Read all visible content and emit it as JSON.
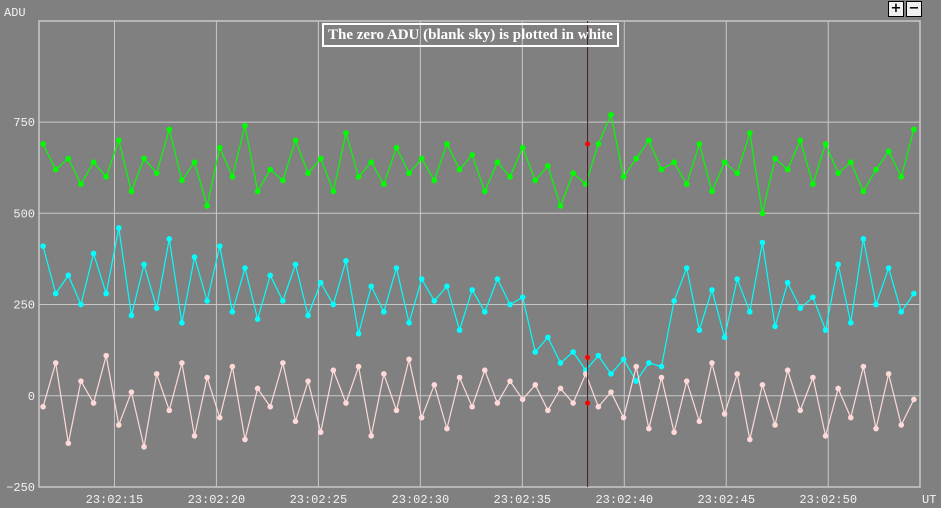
{
  "chart_data": {
    "type": "line",
    "title": "The zero ADU (blank sky) is plotted in white",
    "ylabel": "ADU",
    "xlabel": "UT",
    "ylim": [
      -250,
      1027
    ],
    "xlim_seconds_after_23_02_00": [
      11.3,
      54.5
    ],
    "yticks": [
      {
        "v": 750,
        "label": "750"
      },
      {
        "v": 500,
        "label": "500"
      },
      {
        "v": 250,
        "label": "250"
      },
      {
        "v": 0,
        "label": "0"
      },
      {
        "v": -250,
        "label": "−250"
      }
    ],
    "xticks": [
      {
        "v": 15,
        "label": "23:02:15"
      },
      {
        "v": 20,
        "label": "23:02:20"
      },
      {
        "v": 25,
        "label": "23:02:25"
      },
      {
        "v": 30,
        "label": "23:02:30"
      },
      {
        "v": 35,
        "label": "23:02:35"
      },
      {
        "v": 40,
        "label": "23:02:40"
      },
      {
        "v": 45,
        "label": "23:02:45"
      },
      {
        "v": 50,
        "label": "23:02:50"
      }
    ],
    "grid": true,
    "x_start": 11.5,
    "x_end": 54.2,
    "cursor": {
      "x": 38.2,
      "values": [
        690,
        105,
        -20
      ],
      "color": "#ff0000"
    },
    "series": [
      {
        "name": "green",
        "color": "#00ff00",
        "values": [
          690,
          620,
          650,
          580,
          640,
          600,
          700,
          560,
          650,
          610,
          730,
          590,
          640,
          520,
          680,
          600,
          740,
          560,
          620,
          590,
          700,
          610,
          650,
          560,
          720,
          600,
          640,
          580,
          680,
          610,
          650,
          590,
          690,
          620,
          660,
          560,
          640,
          600,
          680,
          590,
          630,
          520,
          610,
          580,
          690,
          770,
          600,
          650,
          700,
          620,
          640,
          580,
          690,
          560,
          640,
          610,
          720,
          500,
          650,
          620,
          700,
          580,
          690,
          610,
          640,
          560,
          620,
          670,
          600,
          730
        ]
      },
      {
        "name": "cyan",
        "color": "#00ffff",
        "values": [
          410,
          280,
          330,
          250,
          390,
          280,
          460,
          220,
          360,
          240,
          430,
          200,
          380,
          260,
          410,
          230,
          350,
          210,
          330,
          260,
          360,
          220,
          310,
          250,
          370,
          170,
          300,
          230,
          350,
          200,
          320,
          260,
          300,
          180,
          290,
          230,
          320,
          250,
          270,
          120,
          160,
          90,
          120,
          70,
          110,
          60,
          100,
          40,
          90,
          80,
          260,
          350,
          180,
          290,
          160,
          320,
          230,
          420,
          190,
          310,
          240,
          270,
          180,
          360,
          200,
          430,
          250,
          350,
          230,
          280
        ]
      },
      {
        "name": "pink",
        "color": "#ffd8d8",
        "values": [
          -30,
          90,
          -130,
          40,
          -20,
          110,
          -80,
          10,
          -140,
          60,
          -40,
          90,
          -110,
          50,
          -60,
          80,
          -120,
          20,
          -30,
          90,
          -70,
          40,
          -100,
          70,
          -20,
          80,
          -110,
          60,
          -40,
          100,
          -60,
          30,
          -90,
          50,
          -30,
          70,
          -20,
          40,
          -10,
          30,
          -40,
          20,
          -20,
          60,
          -30,
          10,
          -60,
          80,
          -90,
          50,
          -100,
          40,
          -70,
          90,
          -50,
          60,
          -120,
          30,
          -80,
          70,
          -40,
          50,
          -110,
          20,
          -60,
          80,
          -90,
          60,
          -80,
          -10
        ]
      }
    ]
  },
  "controls": {
    "zoom_in": "+",
    "zoom_out": "−"
  }
}
